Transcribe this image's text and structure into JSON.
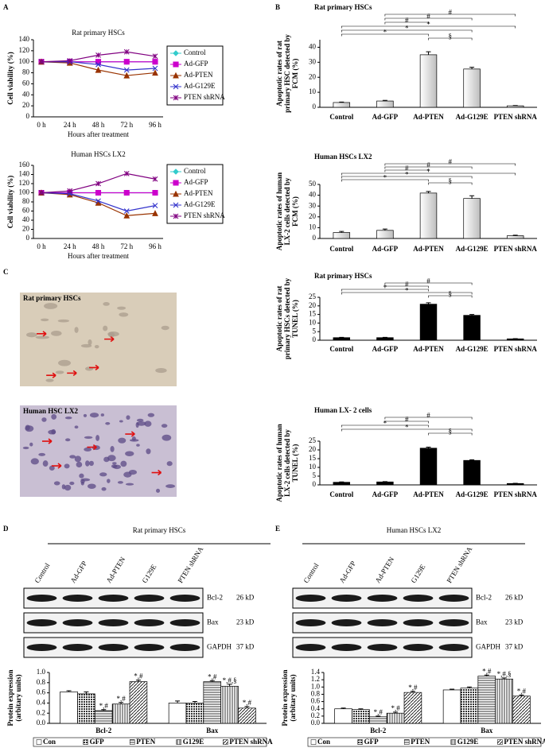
{
  "panel_labels": [
    "A",
    "B",
    "C",
    "D",
    "E"
  ],
  "micrographs": [
    {
      "label": "Rat primary HSCs"
    },
    {
      "label": "Human HSC LX2"
    }
  ],
  "blots": [
    {
      "lanes": [
        "Control",
        "Ad-GFP",
        "Ad-PTEN",
        "G129E",
        "PTEN shRNA"
      ],
      "rows": [
        {
          "protein": "Bcl-2",
          "size": "26 kD"
        },
        {
          "protein": "Bax",
          "size": "23 kD"
        },
        {
          "protein": "GAPDH",
          "size": "37 kD"
        }
      ]
    },
    {
      "lanes": [
        "Control",
        "Ad-GFP",
        "Ad-PTEN",
        "G129E",
        "PTEN shRNA"
      ],
      "rows": [
        {
          "protein": "Bcl-2",
          "size": "26 kD"
        },
        {
          "protein": "Bax",
          "size": "23 kD"
        },
        {
          "protein": "GAPDH",
          "size": "37 kD"
        }
      ]
    }
  ],
  "chart_data": [
    {
      "type": "line",
      "title": "Rat primary HSCs",
      "categories": [
        "0 h",
        "24 h",
        "48 h",
        "72 h",
        "96 h"
      ],
      "x_label": "Hours after treatment",
      "y_label": [
        "Cell viability (%)"
      ],
      "ylim": [
        0,
        140
      ],
      "yticks": [
        0,
        20,
        40,
        60,
        80,
        100,
        120,
        140
      ],
      "legend": "right",
      "series": [
        {
          "name": "Control",
          "color": "#33cccc",
          "marker": "diamond",
          "values": [
            100,
            100,
            100,
            100,
            100
          ]
        },
        {
          "name": "Ad-GFP",
          "color": "#cc00cc",
          "marker": "square",
          "values": [
            100,
            100,
            100,
            100,
            100
          ]
        },
        {
          "name": "Ad-PTEN",
          "color": "#993300",
          "marker": "triangle",
          "values": [
            100,
            98,
            85,
            75,
            80
          ]
        },
        {
          "name": "Ad-G129E",
          "color": "#3333cc",
          "marker": "x",
          "values": [
            100,
            100,
            95,
            85,
            88
          ]
        },
        {
          "name": "PTEN shRNA",
          "color": "#800080",
          "marker": "star",
          "values": [
            100,
            102,
            112,
            118,
            110
          ]
        }
      ]
    },
    {
      "type": "line",
      "title": "Human HSCs LX2",
      "categories": [
        "0 h",
        "24 h",
        "48 h",
        "72 h",
        "96 h"
      ],
      "x_label": "Hours after treatment",
      "y_label": [
        "Cell viability (%)"
      ],
      "ylim": [
        0,
        160
      ],
      "yticks": [
        0,
        20,
        40,
        60,
        80,
        100,
        120,
        140,
        160
      ],
      "legend": "right",
      "series": [
        {
          "name": "Control",
          "color": "#33cccc",
          "marker": "diamond",
          "values": [
            100,
            100,
            100,
            100,
            100
          ]
        },
        {
          "name": "Ad-GFP",
          "color": "#cc00cc",
          "marker": "square",
          "values": [
            100,
            100,
            100,
            100,
            100
          ]
        },
        {
          "name": "Ad-PTEN",
          "color": "#993300",
          "marker": "triangle",
          "values": [
            100,
            96,
            78,
            50,
            55
          ]
        },
        {
          "name": "Ad-G129E",
          "color": "#3333cc",
          "marker": "x",
          "values": [
            100,
            98,
            82,
            60,
            72
          ]
        },
        {
          "name": "PTEN shRNA",
          "color": "#800080",
          "marker": "star",
          "values": [
            100,
            104,
            120,
            142,
            130
          ]
        }
      ]
    },
    {
      "type": "bar",
      "title": "Rat primary HSCs",
      "categories": [
        "Control",
        "Ad-GFP",
        "Ad-PTEN",
        "Ad-G129E",
        "PTEN shRNA"
      ],
      "values": [
        3.2,
        4.2,
        35,
        25.5,
        1
      ],
      "errors": [
        0.3,
        0.4,
        2,
        1.2,
        0.2
      ],
      "color": "#e4e4e4",
      "y_label": [
        "Apoptotic rates of rat",
        "primary HSC detected by",
        "FCM (%)"
      ],
      "ylim": [
        0,
        45
      ],
      "yticks": [
        0,
        10,
        20,
        30,
        40
      ],
      "annotations": [
        {
          "between": [
            "Ad-GFP",
            "PTEN shRNA"
          ],
          "label": "#"
        },
        {
          "between": [
            "Ad-GFP",
            "Ad-G129E"
          ],
          "label": "#"
        },
        {
          "between": [
            "Ad-GFP",
            "Ad-PTEN"
          ],
          "label": "#"
        },
        {
          "between": [
            "Control",
            "PTEN shRNA"
          ],
          "label": "*"
        },
        {
          "between": [
            "Control",
            "Ad-G129E"
          ],
          "label": "*"
        },
        {
          "between": [
            "Control",
            "Ad-PTEN"
          ],
          "label": "*"
        },
        {
          "between": [
            "Ad-PTEN",
            "Ad-G129E"
          ],
          "label": "§"
        }
      ]
    },
    {
      "type": "bar",
      "title": "Human HSCs LX2",
      "categories": [
        "Control",
        "Ad-GFP",
        "Ad-PTEN",
        "Ad-G129E",
        "PTEN shRNA"
      ],
      "values": [
        5.5,
        7.5,
        42,
        37,
        2.5
      ],
      "errors": [
        1,
        1.2,
        1.5,
        2.5,
        0.5
      ],
      "color": "#e4e4e4",
      "y_label": [
        "Apoptotic rates of human",
        "LX-2 cells detected by",
        "FCM (%)"
      ],
      "ylim": [
        0,
        50
      ],
      "yticks": [
        0,
        10,
        20,
        30,
        40,
        50
      ],
      "annotations": [
        {
          "between": [
            "Ad-GFP",
            "PTEN shRNA"
          ],
          "label": "#"
        },
        {
          "between": [
            "Ad-GFP",
            "Ad-G129E"
          ],
          "label": "#"
        },
        {
          "between": [
            "Ad-GFP",
            "Ad-PTEN"
          ],
          "label": "#"
        },
        {
          "between": [
            "Control",
            "PTEN shRNA"
          ],
          "label": "*"
        },
        {
          "between": [
            "Control",
            "Ad-G129E"
          ],
          "label": "*"
        },
        {
          "between": [
            "Control",
            "Ad-PTEN"
          ],
          "label": "*"
        },
        {
          "between": [
            "Ad-PTEN",
            "Ad-G129E"
          ],
          "label": "§"
        }
      ]
    },
    {
      "type": "bar",
      "title": "Rat primary HSCs",
      "categories": [
        "Control",
        "Ad-GFP",
        "Ad-PTEN",
        "Ad-G129E",
        "PTEN shRNA"
      ],
      "values": [
        1.5,
        1.5,
        21,
        14.5,
        0.8
      ],
      "errors": [
        0.2,
        0.2,
        0.8,
        0.5,
        0.1
      ],
      "color": "#000000",
      "y_label": [
        "Apoptotic rates of rat",
        "primary HSCs detected by",
        "TUNEL (%)"
      ],
      "ylim": [
        0,
        25
      ],
      "yticks": [
        0,
        5,
        10,
        15,
        20,
        25
      ],
      "annotations": [
        {
          "between": [
            "Ad-GFP",
            "Ad-G129E"
          ],
          "label": "#"
        },
        {
          "between": [
            "Ad-GFP",
            "Ad-PTEN"
          ],
          "label": "#"
        },
        {
          "between": [
            "Control",
            "Ad-PTEN"
          ],
          "label": "*"
        },
        {
          "between": [
            "Control",
            "Ad-G129E"
          ],
          "label": "*"
        },
        {
          "between": [
            "Ad-PTEN",
            "Ad-G129E"
          ],
          "label": "§"
        }
      ]
    },
    {
      "type": "bar",
      "title": "Human LX- 2 cells",
      "categories": [
        "Control",
        "Ad-GFP",
        "Ad-PTEN",
        "Ad-G129E",
        "PTEN shRNA"
      ],
      "values": [
        1.5,
        1.7,
        21,
        14,
        0.8
      ],
      "errors": [
        0.2,
        0.2,
        0.6,
        0.4,
        0.1
      ],
      "color": "#000000",
      "y_label": [
        "Apoptotic rates of human",
        "LX-2 cells detected by",
        "TUNEL (%)"
      ],
      "ylim": [
        0,
        25
      ],
      "yticks": [
        0,
        5,
        10,
        15,
        20,
        25
      ],
      "annotations": [
        {
          "between": [
            "Ad-GFP",
            "Ad-G129E"
          ],
          "label": "#"
        },
        {
          "between": [
            "Ad-GFP",
            "Ad-PTEN"
          ],
          "label": "#"
        },
        {
          "between": [
            "Control",
            "Ad-PTEN"
          ],
          "label": "*"
        },
        {
          "between": [
            "Control",
            "Ad-G129E"
          ],
          "label": "*"
        },
        {
          "between": [
            "Ad-PTEN",
            "Ad-G129E"
          ],
          "label": "§"
        }
      ]
    },
    {
      "type": "grouped_bar",
      "title": "Rat primary HSCs",
      "categories": [
        "Bcl-2",
        "Bax"
      ],
      "y_label": [
        "Protein expression",
        "(arbitary units)"
      ],
      "ylim": [
        0,
        1
      ],
      "yticks": [
        {
          "value": 0,
          "label": "0.0"
        },
        0.2,
        0.4,
        0.6,
        0.8,
        {
          "value": 1,
          "label": "1.0"
        }
      ],
      "legend": "bottom",
      "series": [
        {
          "name": "Con",
          "pattern": "white",
          "values": [
            0.62,
            0.4
          ],
          "errors": [
            0.02,
            0.04
          ]
        },
        {
          "name": "GFP",
          "pattern": "checker",
          "values": [
            0.58,
            0.4
          ],
          "errors": [
            0.04,
            0.03
          ]
        },
        {
          "name": "PTEN",
          "pattern": "hlines",
          "values": [
            0.25,
            0.82
          ],
          "errors": [
            0.02,
            0.02
          ],
          "annotations": [
            "*,#",
            "*,#"
          ]
        },
        {
          "name": "G129E",
          "pattern": "vlines",
          "values": [
            0.38,
            0.73
          ],
          "errors": [
            0.03,
            0.04
          ],
          "annotations": [
            "*,#",
            "*,#,§"
          ]
        },
        {
          "name": "PTEN shRNA",
          "pattern": "diag",
          "values": [
            0.82,
            0.3
          ],
          "errors": [
            0.03,
            0.03
          ],
          "annotations": [
            "*,#",
            "*,#"
          ]
        }
      ]
    },
    {
      "type": "grouped_bar",
      "title": "Human HSCs LX2",
      "categories": [
        "Bcl-2",
        "Bax"
      ],
      "y_label": [
        "Protein expression",
        "(arbitary units)"
      ],
      "ylim": [
        0,
        1.4
      ],
      "yticks": [
        {
          "value": 0,
          "label": "0.0"
        },
        0.2,
        0.4,
        0.6,
        0.8,
        {
          "value": 1,
          "label": "1.0"
        },
        1.2,
        1.4
      ],
      "legend": "bottom",
      "series": [
        {
          "name": "Con",
          "pattern": "white",
          "values": [
            0.4,
            0.92
          ],
          "errors": [
            0.02,
            0.02
          ]
        },
        {
          "name": "GFP",
          "pattern": "checker",
          "values": [
            0.38,
            0.97
          ],
          "errors": [
            0.02,
            0.03
          ]
        },
        {
          "name": "PTEN",
          "pattern": "hlines",
          "values": [
            0.18,
            1.3
          ],
          "errors": [
            0.02,
            0.03
          ],
          "annotations": [
            "*,#",
            "*,#"
          ]
        },
        {
          "name": "G129E",
          "pattern": "vlines",
          "values": [
            0.28,
            1.22
          ],
          "errors": [
            0.03,
            0.03
          ],
          "annotations": [
            "*,#",
            "*,#,§"
          ]
        },
        {
          "name": "PTEN shRNA",
          "pattern": "diag",
          "values": [
            0.85,
            0.75
          ],
          "errors": [
            0.03,
            0.03
          ],
          "annotations": [
            "*,#",
            "*,#"
          ]
        }
      ]
    }
  ]
}
